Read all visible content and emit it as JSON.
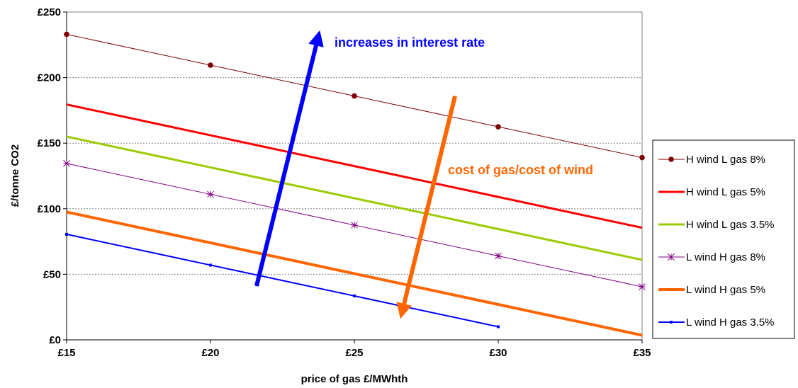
{
  "chart_data": {
    "type": "line",
    "title": "",
    "xlabel": "price of gas £/MWhth",
    "ylabel": "£/tonne CO2",
    "x": [
      15,
      20,
      25,
      30,
      35
    ],
    "x_tick_labels": [
      "£15",
      "£20",
      "£25",
      "£30",
      "£35"
    ],
    "xlim": [
      15,
      35
    ],
    "y_tick_values": [
      0,
      50,
      100,
      150,
      200,
      250
    ],
    "y_tick_labels": [
      "£0",
      "£50",
      "£100",
      "£150",
      "£200",
      "£250"
    ],
    "ylim": [
      0,
      250
    ],
    "grid": "horizontal dotted",
    "legend_placement": "right",
    "series": [
      {
        "name": "H wind L gas 8%",
        "color": "#800000",
        "marker": "circle",
        "width": 1,
        "values": [
          233,
          209.5,
          186,
          162.5,
          139
        ]
      },
      {
        "name": "H wind L gas 5%",
        "color": "#ff0000",
        "marker": "none",
        "width": 3,
        "values": [
          179.5,
          156,
          132.5,
          109,
          85.5
        ]
      },
      {
        "name": "H wind L gas 3.5%",
        "color": "#99cc00",
        "marker": "none",
        "width": 3,
        "values": [
          155,
          131.5,
          108,
          84.5,
          61
        ]
      },
      {
        "name": "L wind H gas 8%",
        "color": "#800080",
        "marker": "star",
        "width": 1,
        "values": [
          134.5,
          111,
          87.5,
          64,
          40.5
        ]
      },
      {
        "name": "L wind H gas 5%",
        "color": "#ff6600",
        "marker": "none",
        "width": 4,
        "values": [
          97.5,
          74,
          50.5,
          27,
          3.5
        ]
      },
      {
        "name": "L wind H gas 3.5%",
        "color": "#0000ff",
        "marker": "small",
        "width": 2,
        "values": [
          80.5,
          57,
          33.5,
          10,
          null
        ]
      }
    ],
    "annotations": [
      {
        "text": "increases in interest rate",
        "color": "#0000ff",
        "arrow_from": [
          21.6,
          41
        ],
        "arrow_to": [
          23.8,
          236
        ]
      },
      {
        "text": "cost of gas/cost of wind",
        "color": "#ff6600",
        "arrow_from": [
          28.5,
          186
        ],
        "arrow_to": [
          26.6,
          16
        ]
      }
    ]
  }
}
